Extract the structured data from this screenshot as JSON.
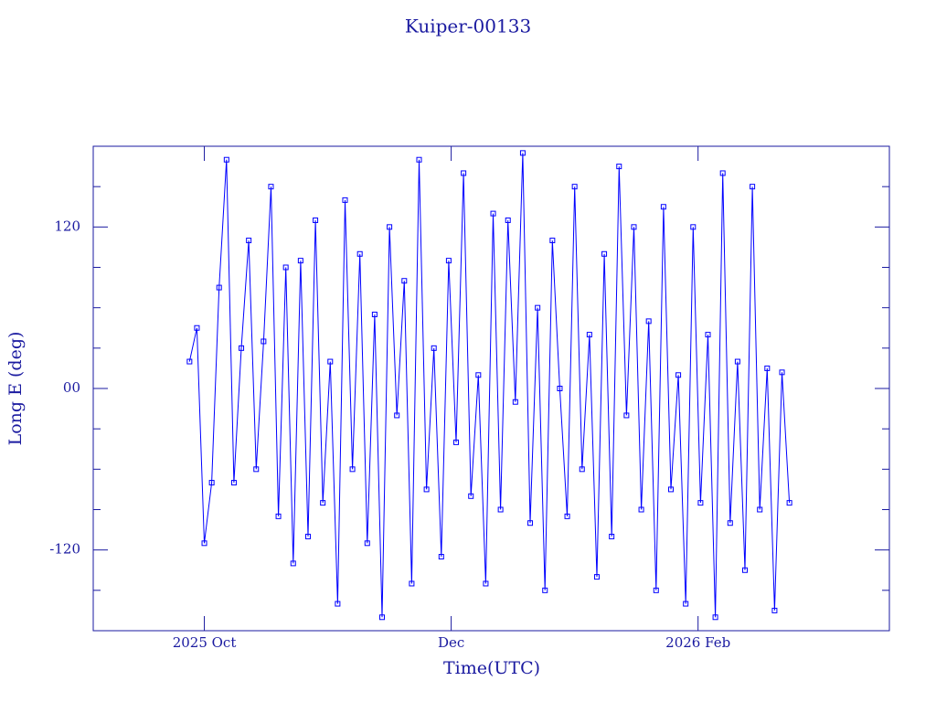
{
  "chart_data": {
    "type": "line",
    "title": "Kuiper-00133",
    "xlabel": "Time(UTC)",
    "ylabel": "Long E (deg)",
    "x": [
      9.88,
      9.94,
      10.0,
      10.06,
      10.12,
      10.18,
      10.24,
      10.3,
      10.36,
      10.42,
      10.48,
      10.54,
      10.6,
      10.66,
      10.72,
      10.78,
      10.84,
      10.9,
      10.96,
      11.02,
      11.08,
      11.14,
      11.2,
      11.26,
      11.32,
      11.38,
      11.44,
      11.5,
      11.56,
      11.62,
      11.68,
      11.74,
      11.8,
      11.86,
      11.92,
      11.98,
      12.04,
      12.1,
      12.16,
      12.22,
      12.28,
      12.34,
      12.4,
      12.46,
      12.52,
      12.58,
      12.64,
      12.7,
      12.76,
      12.82,
      12.88,
      12.94,
      13.0,
      13.06,
      13.12,
      13.18,
      13.24,
      13.3,
      13.36,
      13.42,
      13.48,
      13.54,
      13.6,
      13.66,
      13.72,
      13.78,
      13.84,
      13.9,
      13.96,
      14.02,
      14.08,
      14.14,
      14.2,
      14.26,
      14.32,
      14.38,
      14.44,
      14.5,
      14.56,
      14.62,
      14.68,
      14.74
    ],
    "values": [
      20,
      45,
      -115,
      -70,
      75,
      170,
      -70,
      30,
      110,
      -60,
      35,
      150,
      -95,
      90,
      -130,
      95,
      -110,
      125,
      -85,
      20,
      -160,
      140,
      -60,
      100,
      -115,
      55,
      -170,
      120,
      -20,
      80,
      -145,
      170,
      -75,
      30,
      -125,
      95,
      -40,
      160,
      -80,
      10,
      -145,
      130,
      -90,
      125,
      -10,
      175,
      -100,
      60,
      -150,
      110,
      0,
      -95,
      150,
      -60,
      40,
      -140,
      100,
      -110,
      165,
      -20,
      120,
      -90,
      50,
      -150,
      135,
      -75,
      10,
      -160,
      120,
      -85,
      40,
      -170,
      160,
      -100,
      20,
      -135,
      150,
      -90,
      15,
      -165,
      12,
      -85
    ],
    "color": "#0000ff",
    "xlim": [
      9.1,
      15.55
    ],
    "xticks": [
      {
        "value": 10,
        "label": "2025 Oct"
      },
      {
        "value": 12,
        "label": "Dec"
      },
      {
        "value": 14,
        "label": "2026 Feb"
      }
    ],
    "ylim": [
      -180,
      180
    ],
    "yticks": [
      -120,
      {
        "value": 0,
        "label": "00"
      },
      120
    ],
    "yminorticks": [
      -150,
      -90,
      -60,
      -30,
      30,
      60,
      90,
      150
    ]
  }
}
